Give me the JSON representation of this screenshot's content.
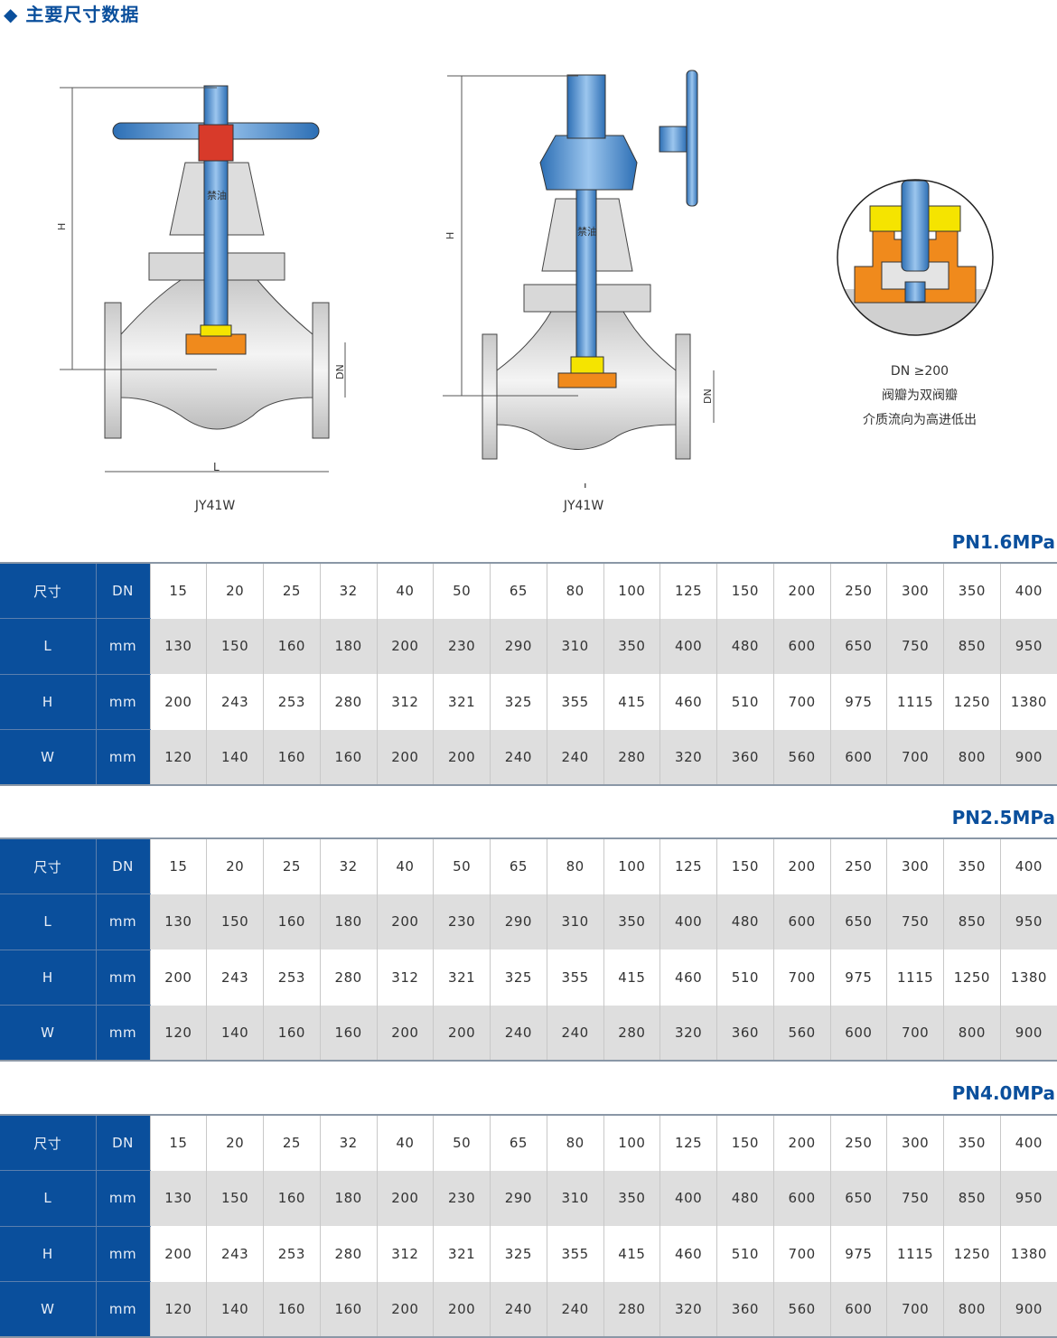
{
  "title": "◆ 主要尺寸数据",
  "drawings": {
    "left_caption": "JY41W",
    "right_caption": "JY41W",
    "dim_H": "H",
    "dim_L": "L",
    "dim_DN": "DN",
    "label_oil": "禁油"
  },
  "detail_note": {
    "line1": "DN ≥200",
    "line2": "阀瓣为双阀瓣",
    "line3": "介质流向为高进低出"
  },
  "colors": {
    "header_blue": "#0a4f9c",
    "row_gray": "#dedede",
    "valve_blue": "#4a8fd0",
    "disc_orange": "#f08a1c",
    "packing_yellow": "#f5e400"
  },
  "row_labels": [
    {
      "name": "尺寸",
      "unit": "DN"
    },
    {
      "name": "L",
      "unit": "mm"
    },
    {
      "name": "H",
      "unit": "mm"
    },
    {
      "name": "W",
      "unit": "mm"
    }
  ],
  "tables": [
    {
      "pressure": "PN1.6MPa",
      "DN": [
        "15",
        "20",
        "25",
        "32",
        "40",
        "50",
        "65",
        "80",
        "100",
        "125",
        "150",
        "200",
        "250",
        "300",
        "350",
        "400"
      ],
      "L": [
        "130",
        "150",
        "160",
        "180",
        "200",
        "230",
        "290",
        "310",
        "350",
        "400",
        "480",
        "600",
        "650",
        "750",
        "850",
        "950"
      ],
      "H": [
        "200",
        "243",
        "253",
        "280",
        "312",
        "321",
        "325",
        "355",
        "415",
        "460",
        "510",
        "700",
        "975",
        "1115",
        "1250",
        "1380"
      ],
      "W": [
        "120",
        "140",
        "160",
        "160",
        "200",
        "200",
        "240",
        "240",
        "280",
        "320",
        "360",
        "560",
        "600",
        "700",
        "800",
        "900"
      ]
    },
    {
      "pressure": "PN2.5MPa",
      "DN": [
        "15",
        "20",
        "25",
        "32",
        "40",
        "50",
        "65",
        "80",
        "100",
        "125",
        "150",
        "200",
        "250",
        "300",
        "350",
        "400"
      ],
      "L": [
        "130",
        "150",
        "160",
        "180",
        "200",
        "230",
        "290",
        "310",
        "350",
        "400",
        "480",
        "600",
        "650",
        "750",
        "850",
        "950"
      ],
      "H": [
        "200",
        "243",
        "253",
        "280",
        "312",
        "321",
        "325",
        "355",
        "415",
        "460",
        "510",
        "700",
        "975",
        "1115",
        "1250",
        "1380"
      ],
      "W": [
        "120",
        "140",
        "160",
        "160",
        "200",
        "200",
        "240",
        "240",
        "280",
        "320",
        "360",
        "560",
        "600",
        "700",
        "800",
        "900"
      ]
    },
    {
      "pressure": "PN4.0MPa",
      "DN": [
        "15",
        "20",
        "25",
        "32",
        "40",
        "50",
        "65",
        "80",
        "100",
        "125",
        "150",
        "200",
        "250",
        "300",
        "350",
        "400"
      ],
      "L": [
        "130",
        "150",
        "160",
        "180",
        "200",
        "230",
        "290",
        "310",
        "350",
        "400",
        "480",
        "600",
        "650",
        "750",
        "850",
        "950"
      ],
      "H": [
        "200",
        "243",
        "253",
        "280",
        "312",
        "321",
        "325",
        "355",
        "415",
        "460",
        "510",
        "700",
        "975",
        "1115",
        "1250",
        "1380"
      ],
      "W": [
        "120",
        "140",
        "160",
        "160",
        "200",
        "200",
        "240",
        "240",
        "280",
        "320",
        "360",
        "560",
        "600",
        "700",
        "800",
        "900"
      ]
    }
  ]
}
